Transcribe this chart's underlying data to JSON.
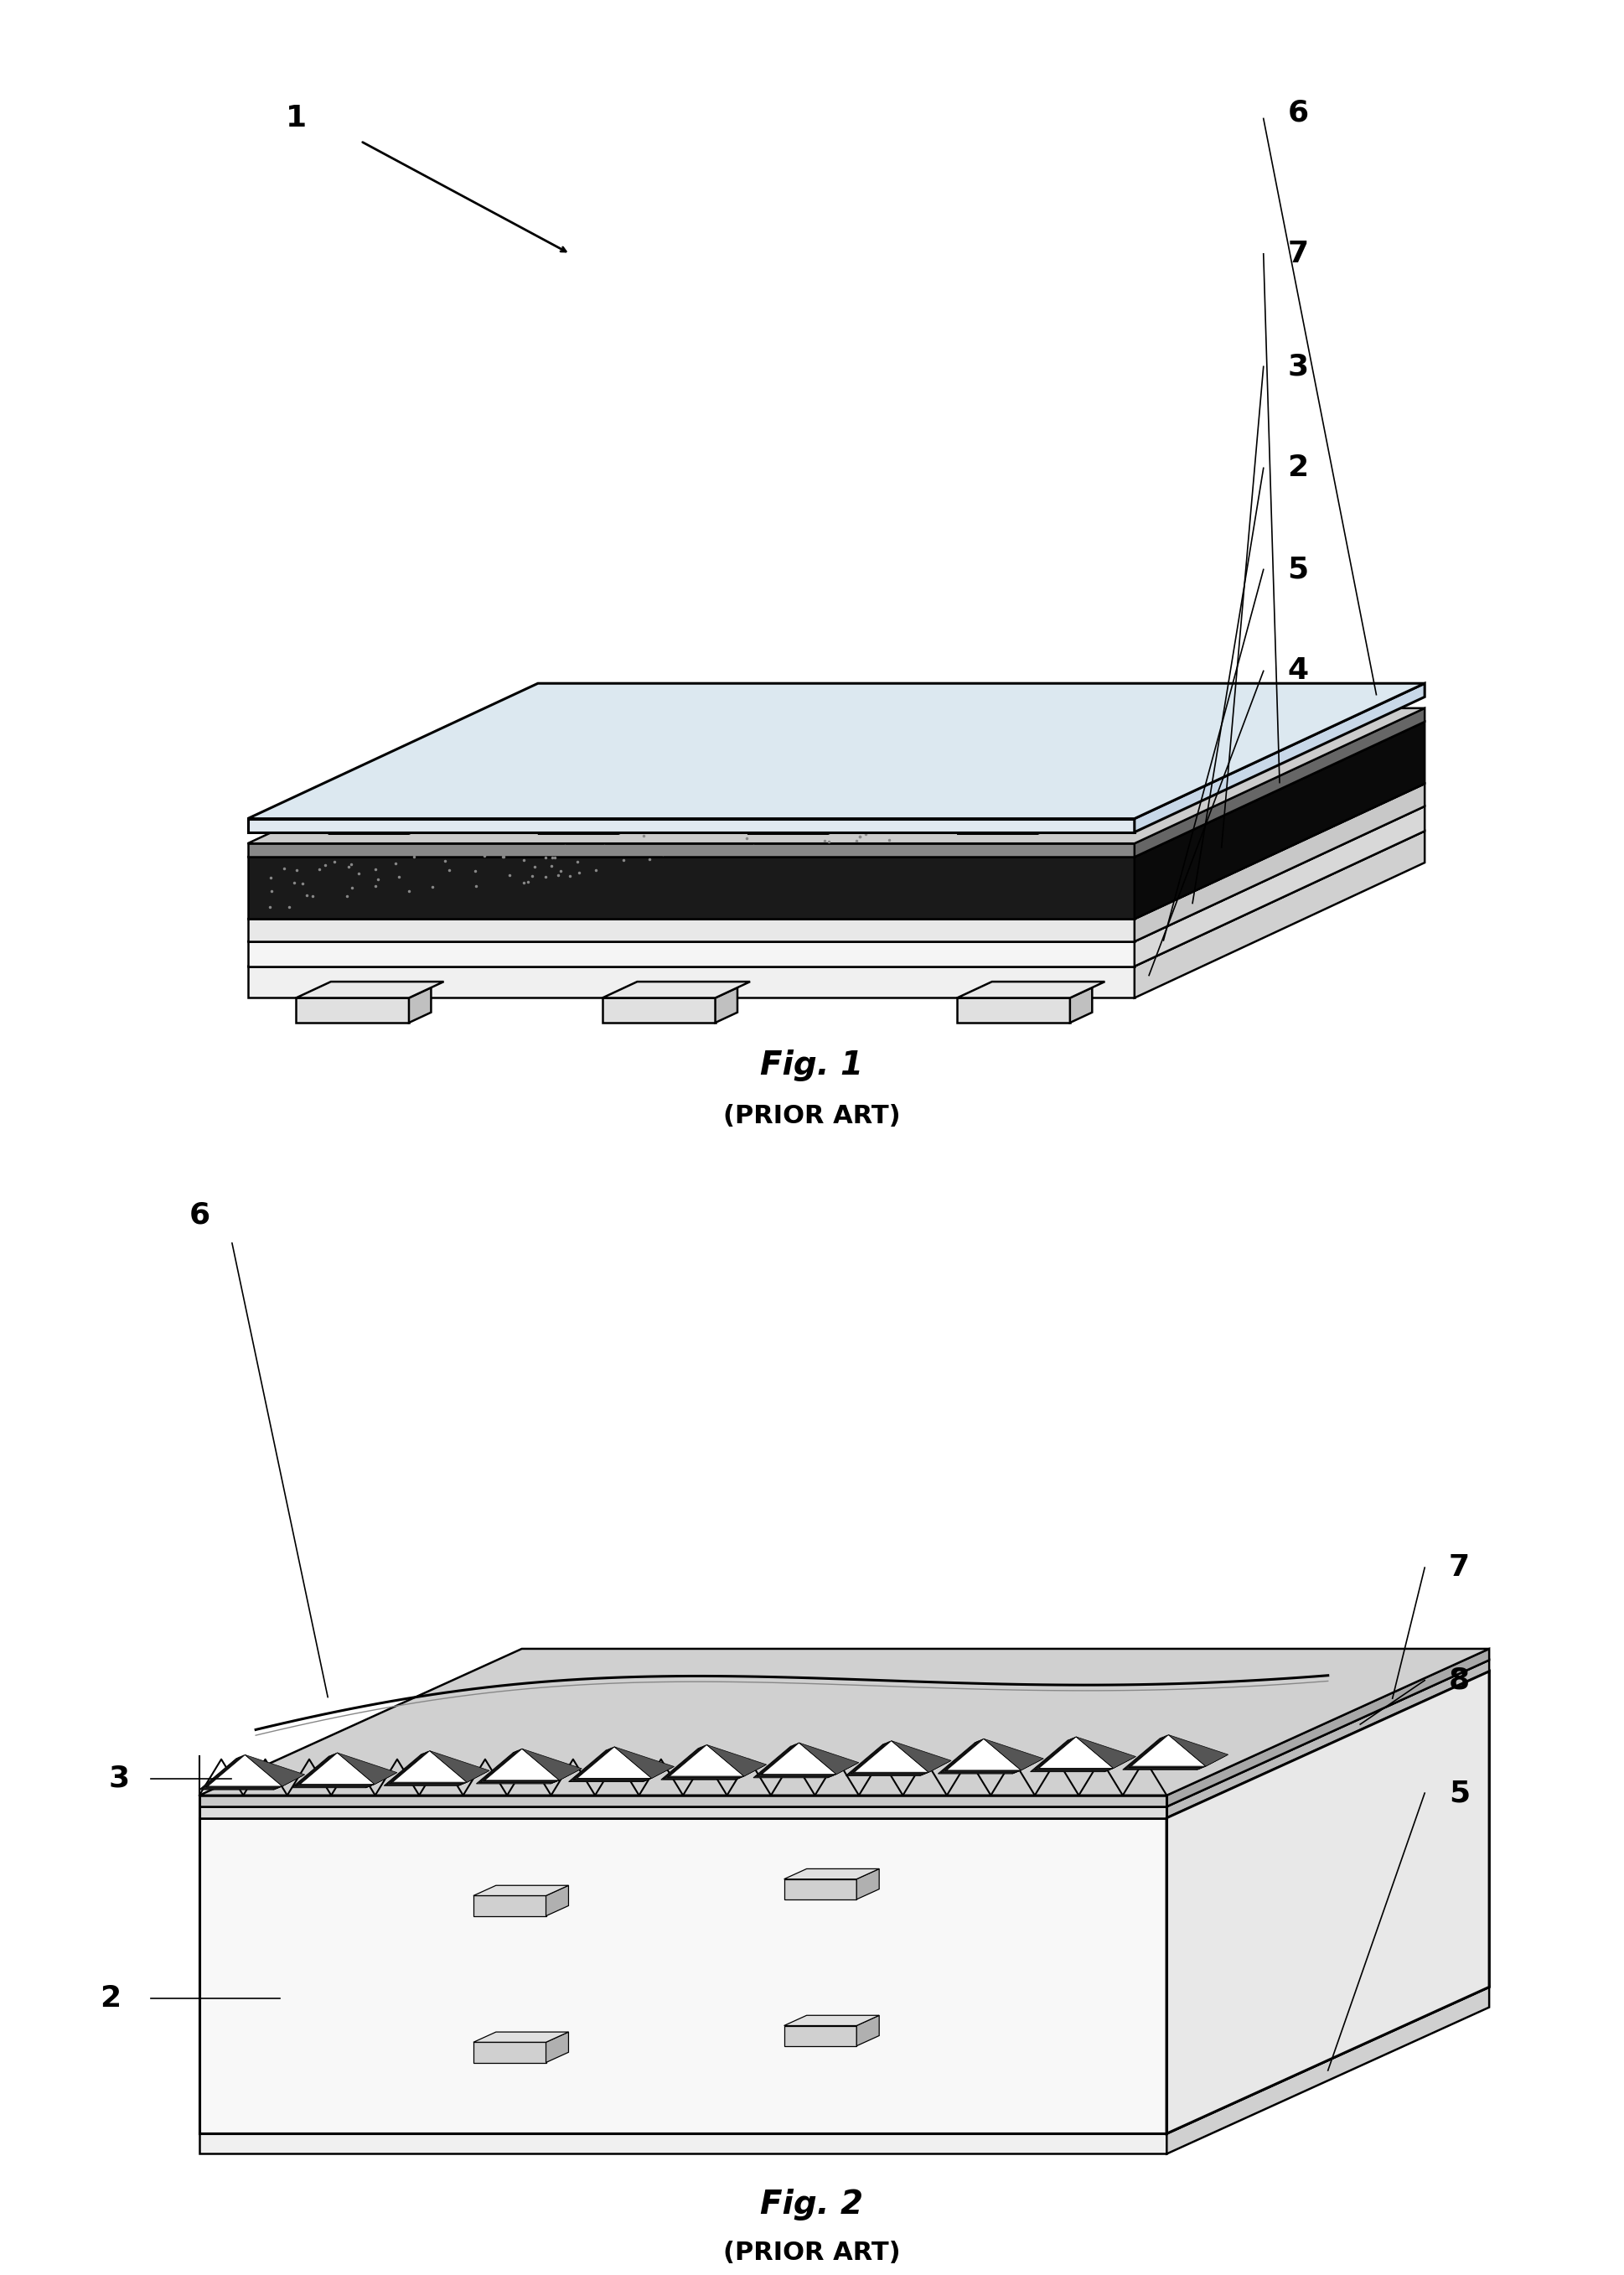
{
  "fig1_title": "Fig. 1",
  "fig1_subtitle": "(PRIOR ART)",
  "fig2_title": "Fig. 2",
  "fig2_subtitle": "(PRIOR ART)",
  "bg_color": "#ffffff",
  "line_color": "#000000",
  "label1": "1",
  "labels_fig1": [
    "6",
    "7",
    "3",
    "2",
    "5",
    "4"
  ],
  "labels_fig2": [
    "6",
    "3",
    "2",
    "7",
    "8",
    "5"
  ],
  "title_fontsize": 28,
  "subtitle_fontsize": 22,
  "label_fontsize": 26
}
